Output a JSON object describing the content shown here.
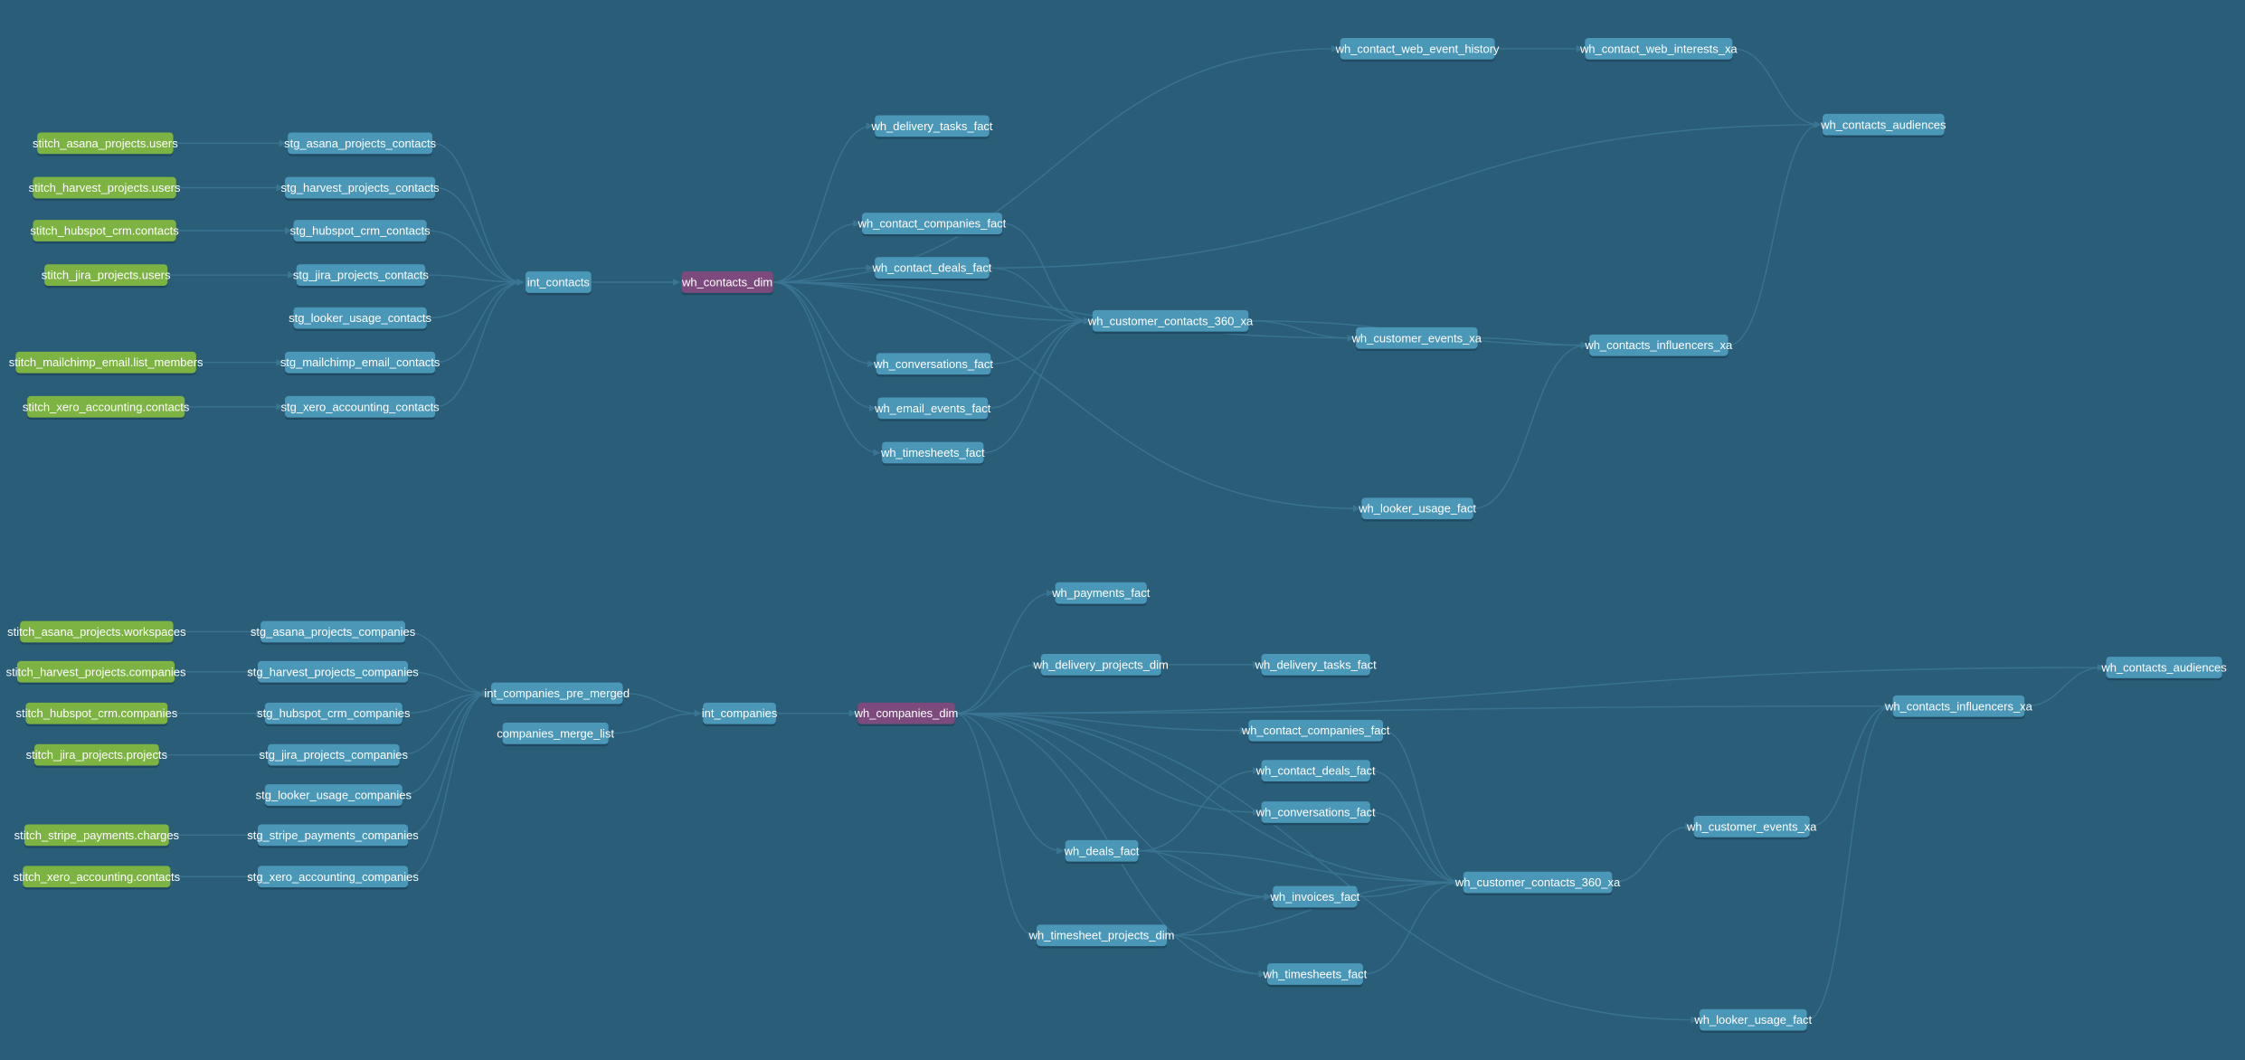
{
  "colors": {
    "background": "#2a5d78",
    "source": "#7cb342",
    "model": "#4a97b7",
    "dimension_highlight": "#7c4a7c",
    "edge": "#3a7592"
  },
  "nodes": [
    {
      "id": "t_src_asana",
      "label": "stitch_asana_projects.users",
      "type": "source"
    },
    {
      "id": "t_src_harvest",
      "label": "stitch_harvest_projects.users",
      "type": "source"
    },
    {
      "id": "t_src_hubspot",
      "label": "stitch_hubspot_crm.contacts",
      "type": "source"
    },
    {
      "id": "t_src_jira",
      "label": "stitch_jira_projects.users",
      "type": "source"
    },
    {
      "id": "t_src_mailchimp",
      "label": "stitch_mailchimp_email.list_members",
      "type": "source"
    },
    {
      "id": "t_src_xero",
      "label": "stitch_xero_accounting.contacts",
      "type": "source"
    },
    {
      "id": "t_stg_asana",
      "label": "stg_asana_projects_contacts",
      "type": "model"
    },
    {
      "id": "t_stg_harvest",
      "label": "stg_harvest_projects_contacts",
      "type": "model"
    },
    {
      "id": "t_stg_hubspot",
      "label": "stg_hubspot_crm_contacts",
      "type": "model"
    },
    {
      "id": "t_stg_jira",
      "label": "stg_jira_projects_contacts",
      "type": "model"
    },
    {
      "id": "t_stg_looker",
      "label": "stg_looker_usage_contacts",
      "type": "model"
    },
    {
      "id": "t_stg_mailchimp",
      "label": "stg_mailchimp_email_contacts",
      "type": "model"
    },
    {
      "id": "t_stg_xero",
      "label": "stg_xero_accounting_contacts",
      "type": "model"
    },
    {
      "id": "t_int_contacts",
      "label": "int_contacts",
      "type": "model"
    },
    {
      "id": "t_dim",
      "label": "wh_contacts_dim",
      "type": "dim"
    },
    {
      "id": "t_delivery_tasks",
      "label": "wh_delivery_tasks_fact",
      "type": "model"
    },
    {
      "id": "t_contact_companies",
      "label": "wh_contact_companies_fact",
      "type": "model"
    },
    {
      "id": "t_contact_deals",
      "label": "wh_contact_deals_fact",
      "type": "model"
    },
    {
      "id": "t_conversations",
      "label": "wh_conversations_fact",
      "type": "model"
    },
    {
      "id": "t_email_events",
      "label": "wh_email_events_fact",
      "type": "model"
    },
    {
      "id": "t_timesheets",
      "label": "wh_timesheets_fact",
      "type": "model"
    },
    {
      "id": "t_web_event_history",
      "label": "wh_contact_web_event_history",
      "type": "model"
    },
    {
      "id": "t_web_interests",
      "label": "wh_contact_web_interests_xa",
      "type": "model"
    },
    {
      "id": "t_audiences",
      "label": "wh_contacts_audiences",
      "type": "model"
    },
    {
      "id": "t_360",
      "label": "wh_customer_contacts_360_xa",
      "type": "model"
    },
    {
      "id": "t_customer_events",
      "label": "wh_customer_events_xa",
      "type": "model"
    },
    {
      "id": "t_influencers",
      "label": "wh_contacts_influencers_xa",
      "type": "model"
    },
    {
      "id": "t_looker_usage",
      "label": "wh_looker_usage_fact",
      "type": "model"
    },
    {
      "id": "b_src_asana",
      "label": "stitch_asana_projects.workspaces",
      "type": "source"
    },
    {
      "id": "b_src_harvest",
      "label": "stitch_harvest_projects.companies",
      "type": "source"
    },
    {
      "id": "b_src_hubspot",
      "label": "stitch_hubspot_crm.companies",
      "type": "source"
    },
    {
      "id": "b_src_jira",
      "label": "stitch_jira_projects.projects",
      "type": "source"
    },
    {
      "id": "b_src_stripe",
      "label": "stitch_stripe_payments.charges",
      "type": "source"
    },
    {
      "id": "b_src_xero",
      "label": "stitch_xero_accounting.contacts",
      "type": "source"
    },
    {
      "id": "b_stg_asana",
      "label": "stg_asana_projects_companies",
      "type": "model"
    },
    {
      "id": "b_stg_harvest",
      "label": "stg_harvest_projects_companies",
      "type": "model"
    },
    {
      "id": "b_stg_hubspot",
      "label": "stg_hubspot_crm_companies",
      "type": "model"
    },
    {
      "id": "b_stg_jira",
      "label": "stg_jira_projects_companies",
      "type": "model"
    },
    {
      "id": "b_stg_looker",
      "label": "stg_looker_usage_companies",
      "type": "model"
    },
    {
      "id": "b_stg_stripe",
      "label": "stg_stripe_payments_companies",
      "type": "model"
    },
    {
      "id": "b_stg_xero",
      "label": "stg_xero_accounting_companies",
      "type": "model"
    },
    {
      "id": "b_pre_merged",
      "label": "int_companies_pre_merged",
      "type": "model"
    },
    {
      "id": "b_merge_list",
      "label": "companies_merge_list",
      "type": "model"
    },
    {
      "id": "b_int_companies",
      "label": "int_companies",
      "type": "model"
    },
    {
      "id": "b_dim",
      "label": "wh_companies_dim",
      "type": "dim"
    },
    {
      "id": "b_payments",
      "label": "wh_payments_fact",
      "type": "model"
    },
    {
      "id": "b_delivery_projects",
      "label": "wh_delivery_projects_dim",
      "type": "model"
    },
    {
      "id": "b_delivery_tasks",
      "label": "wh_delivery_tasks_fact",
      "type": "model"
    },
    {
      "id": "b_audiences",
      "label": "wh_contacts_audiences",
      "type": "model"
    },
    {
      "id": "b_influencers",
      "label": "wh_contacts_influencers_xa",
      "type": "model"
    },
    {
      "id": "b_contact_companies",
      "label": "wh_contact_companies_fact",
      "type": "model"
    },
    {
      "id": "b_contact_deals",
      "label": "wh_contact_deals_fact",
      "type": "model"
    },
    {
      "id": "b_conversations",
      "label": "wh_conversations_fact",
      "type": "model"
    },
    {
      "id": "b_deals",
      "label": "wh_deals_fact",
      "type": "model"
    },
    {
      "id": "b_customer_events",
      "label": "wh_customer_events_xa",
      "type": "model"
    },
    {
      "id": "b_360",
      "label": "wh_customer_contacts_360_xa",
      "type": "model"
    },
    {
      "id": "b_invoices",
      "label": "wh_invoices_fact",
      "type": "model"
    },
    {
      "id": "b_timesheet_projects",
      "label": "wh_timesheet_projects_dim",
      "type": "model"
    },
    {
      "id": "b_timesheets",
      "label": "wh_timesheets_fact",
      "type": "model"
    },
    {
      "id": "b_looker_usage",
      "label": "wh_looker_usage_fact",
      "type": "model"
    }
  ],
  "edges": [
    [
      "t_src_asana",
      "t_stg_asana"
    ],
    [
      "t_src_harvest",
      "t_stg_harvest"
    ],
    [
      "t_src_hubspot",
      "t_stg_hubspot"
    ],
    [
      "t_src_jira",
      "t_stg_jira"
    ],
    [
      "t_src_mailchimp",
      "t_stg_mailchimp"
    ],
    [
      "t_src_xero",
      "t_stg_xero"
    ],
    [
      "t_stg_asana",
      "t_int_contacts"
    ],
    [
      "t_stg_harvest",
      "t_int_contacts"
    ],
    [
      "t_stg_hubspot",
      "t_int_contacts"
    ],
    [
      "t_stg_jira",
      "t_int_contacts"
    ],
    [
      "t_stg_looker",
      "t_int_contacts"
    ],
    [
      "t_stg_mailchimp",
      "t_int_contacts"
    ],
    [
      "t_stg_xero",
      "t_int_contacts"
    ],
    [
      "t_int_contacts",
      "t_dim"
    ],
    [
      "t_dim",
      "t_delivery_tasks"
    ],
    [
      "t_dim",
      "t_contact_companies"
    ],
    [
      "t_dim",
      "t_contact_deals"
    ],
    [
      "t_dim",
      "t_conversations"
    ],
    [
      "t_dim",
      "t_email_events"
    ],
    [
      "t_dim",
      "t_timesheets"
    ],
    [
      "t_dim",
      "t_web_event_history"
    ],
    [
      "t_dim",
      "t_360"
    ],
    [
      "t_dim",
      "t_customer_events"
    ],
    [
      "t_dim",
      "t_looker_usage"
    ],
    [
      "t_contact_deals",
      "t_audiences"
    ],
    [
      "t_contact_companies",
      "t_360"
    ],
    [
      "t_contact_deals",
      "t_360"
    ],
    [
      "t_conversations",
      "t_360"
    ],
    [
      "t_email_events",
      "t_360"
    ],
    [
      "t_timesheets",
      "t_360"
    ],
    [
      "t_web_event_history",
      "t_web_interests"
    ],
    [
      "t_web_interests",
      "t_audiences"
    ],
    [
      "t_360",
      "t_customer_events"
    ],
    [
      "t_360",
      "t_influencers"
    ],
    [
      "t_customer_events",
      "t_influencers"
    ],
    [
      "t_looker_usage",
      "t_influencers"
    ],
    [
      "t_influencers",
      "t_audiences"
    ],
    [
      "b_src_asana",
      "b_stg_asana"
    ],
    [
      "b_src_harvest",
      "b_stg_harvest"
    ],
    [
      "b_src_hubspot",
      "b_stg_hubspot"
    ],
    [
      "b_src_jira",
      "b_stg_jira"
    ],
    [
      "b_src_stripe",
      "b_stg_stripe"
    ],
    [
      "b_src_xero",
      "b_stg_xero"
    ],
    [
      "b_stg_asana",
      "b_pre_merged"
    ],
    [
      "b_stg_harvest",
      "b_pre_merged"
    ],
    [
      "b_stg_hubspot",
      "b_pre_merged"
    ],
    [
      "b_stg_jira",
      "b_pre_merged"
    ],
    [
      "b_stg_looker",
      "b_pre_merged"
    ],
    [
      "b_stg_stripe",
      "b_pre_merged"
    ],
    [
      "b_stg_xero",
      "b_pre_merged"
    ],
    [
      "b_pre_merged",
      "b_int_companies"
    ],
    [
      "b_merge_list",
      "b_int_companies"
    ],
    [
      "b_int_companies",
      "b_dim"
    ],
    [
      "b_dim",
      "b_payments"
    ],
    [
      "b_dim",
      "b_delivery_projects"
    ],
    [
      "b_dim",
      "b_audiences"
    ],
    [
      "b_dim",
      "b_influencers"
    ],
    [
      "b_dim",
      "b_contact_companies"
    ],
    [
      "b_dim",
      "b_conversations"
    ],
    [
      "b_dim",
      "b_deals"
    ],
    [
      "b_dim",
      "b_invoices"
    ],
    [
      "b_dim",
      "b_timesheet_projects"
    ],
    [
      "b_dim",
      "b_360"
    ],
    [
      "b_dim",
      "b_timesheets"
    ],
    [
      "b_dim",
      "b_looker_usage"
    ],
    [
      "b_delivery_projects",
      "b_delivery_tasks"
    ],
    [
      "b_deals",
      "b_contact_deals"
    ],
    [
      "b_deals",
      "b_360"
    ],
    [
      "b_deals",
      "b_invoices"
    ],
    [
      "b_timesheet_projects",
      "b_invoices"
    ],
    [
      "b_timesheet_projects",
      "b_timesheets"
    ],
    [
      "b_timesheet_projects",
      "b_360"
    ],
    [
      "b_contact_companies",
      "b_360"
    ],
    [
      "b_contact_deals",
      "b_360"
    ],
    [
      "b_conversations",
      "b_360"
    ],
    [
      "b_invoices",
      "b_360"
    ],
    [
      "b_timesheets",
      "b_360"
    ],
    [
      "b_360",
      "b_customer_events"
    ],
    [
      "b_customer_events",
      "b_influencers"
    ],
    [
      "b_looker_usage",
      "b_influencers"
    ],
    [
      "b_influencers",
      "b_audiences"
    ]
  ]
}
